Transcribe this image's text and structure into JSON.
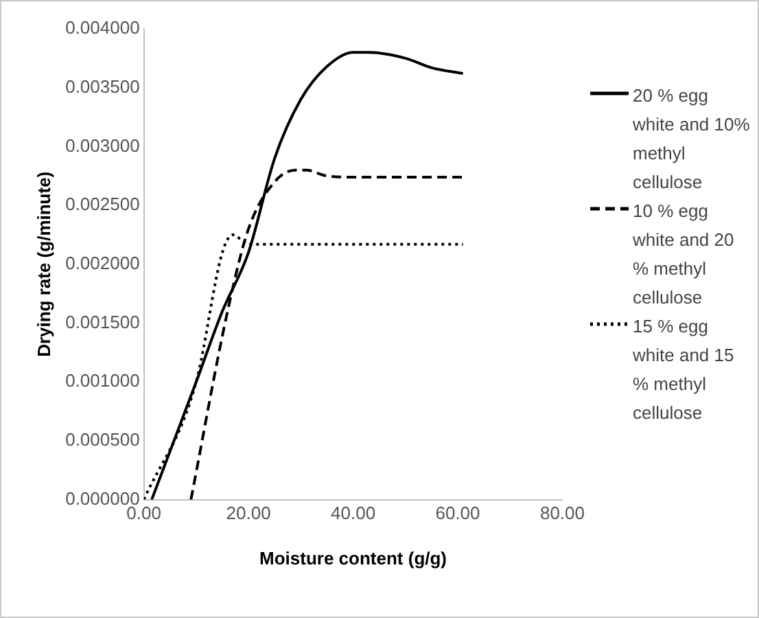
{
  "chart_data": {
    "type": "line",
    "xlabel": "Moisture content (g/g)",
    "ylabel": "Drying rate (g/minute)",
    "xlim": [
      0,
      80
    ],
    "xticks": [
      {
        "value": 0,
        "label": "0.00"
      },
      {
        "value": 20,
        "label": "20.00"
      },
      {
        "value": 40,
        "label": "40.00"
      },
      {
        "value": 60,
        "label": "60.00"
      },
      {
        "value": 80,
        "label": "80.00"
      }
    ],
    "ylim": [
      0,
      0.004
    ],
    "yticks": [
      {
        "value": 0,
        "label": "0.000000"
      },
      {
        "value": 0.0005,
        "label": "0.000500"
      },
      {
        "value": 0.001,
        "label": "0.001000"
      },
      {
        "value": 0.0015,
        "label": "0.001500"
      },
      {
        "value": 0.002,
        "label": "0.002000"
      },
      {
        "value": 0.0025,
        "label": "0.002500"
      },
      {
        "value": 0.003,
        "label": "0.003000"
      },
      {
        "value": 0.0035,
        "label": "0.003500"
      },
      {
        "value": 0.004,
        "label": "0.004000"
      }
    ],
    "grid": false,
    "legend": "right",
    "marker": "none",
    "series": [
      {
        "name": "20 % egg white and 10% methyl cellulose",
        "color": "#000000",
        "line_style": "solid",
        "x": [
          1.5,
          10,
          15,
          20,
          25,
          30,
          35,
          40,
          43,
          50,
          55,
          61
        ],
        "values": [
          0,
          0.001,
          0.0016,
          0.0021,
          0.0029,
          0.0034,
          0.00368,
          0.0038,
          0.0038,
          0.00375,
          0.00367,
          0.00362
        ]
      },
      {
        "name": "10 % egg white and 20 % methyl cellulose",
        "color": "#000000",
        "line_style": "dashed",
        "x": [
          9,
          16,
          20,
          25,
          29,
          31,
          35,
          40,
          61
        ],
        "values": [
          0,
          0.0016,
          0.0023,
          0.0027,
          0.0028,
          0.0028,
          0.00275,
          0.00274,
          0.00274
        ]
      },
      {
        "name": "15 % egg white and 15 % methyl cellulose",
        "color": "#000000",
        "line_style": "dotted",
        "x": [
          0,
          10,
          15,
          17,
          20,
          61
        ],
        "values": [
          0,
          0.001,
          0.0021,
          0.00225,
          0.00217,
          0.00217
        ]
      }
    ]
  }
}
